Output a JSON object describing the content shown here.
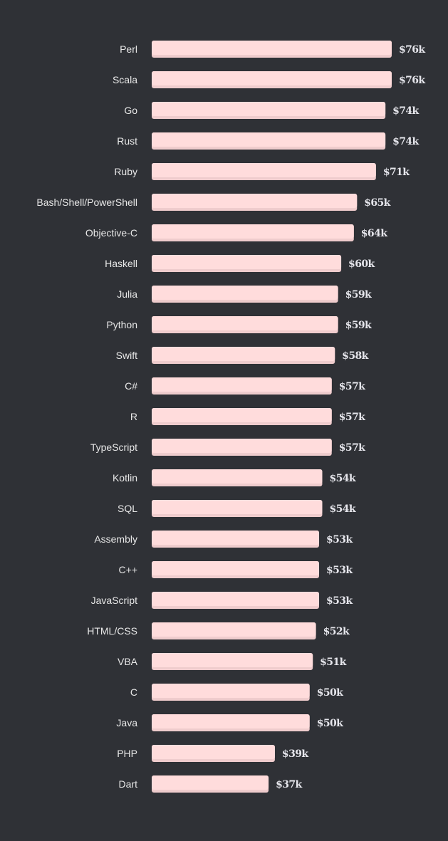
{
  "chart_data": {
    "type": "bar",
    "orientation": "horizontal",
    "title": "",
    "xlabel": "",
    "ylabel": "",
    "unit_prefix": "$",
    "unit_suffix": "k",
    "xlim": [
      0,
      76
    ],
    "grid": false,
    "legend": "none",
    "colors": {
      "background": "#2f3136",
      "bar": "#ffdcdc",
      "bar_shade": "#efcccd",
      "label": "#e8e8e8",
      "value": "#e6e6ec"
    },
    "categories": [
      "Perl",
      "Scala",
      "Go",
      "Rust",
      "Ruby",
      "Bash/Shell/PowerShell",
      "Objective-C",
      "Haskell",
      "Julia",
      "Python",
      "Swift",
      "C#",
      "R",
      "TypeScript",
      "Kotlin",
      "SQL",
      "Assembly",
      "C++",
      "JavaScript",
      "HTML/CSS",
      "VBA",
      "C",
      "Java",
      "PHP",
      "Dart"
    ],
    "values": [
      76,
      76,
      74,
      74,
      71,
      65,
      64,
      60,
      59,
      59,
      58,
      57,
      57,
      57,
      54,
      54,
      53,
      53,
      53,
      52,
      51,
      50,
      50,
      39,
      37
    ],
    "value_labels": [
      "$76k",
      "$76k",
      "$74k",
      "$74k",
      "$71k",
      "$65k",
      "$64k",
      "$60k",
      "$59k",
      "$59k",
      "$58k",
      "$57k",
      "$57k",
      "$57k",
      "$54k",
      "$54k",
      "$53k",
      "$53k",
      "$53k",
      "$52k",
      "$51k",
      "$50k",
      "$50k",
      "$39k",
      "$37k"
    ]
  }
}
